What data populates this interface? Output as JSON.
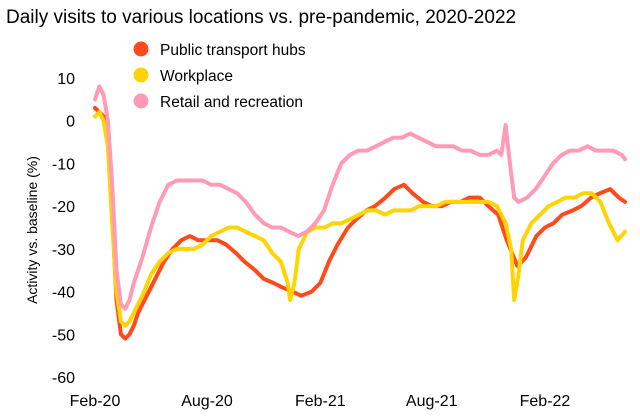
{
  "chart_data": {
    "type": "line",
    "title": "Daily visits to various locations vs. pre-pandemic, 2020-2022",
    "xlabel": "",
    "ylabel": "Activity vs. baseline (%)",
    "ylim": [
      -60,
      10
    ],
    "yticks": [
      10,
      0,
      -10,
      -20,
      -30,
      -40,
      -50,
      -60
    ],
    "xlim": [
      "2020-02-15",
      "2022-06-25"
    ],
    "xticks": [
      {
        "label": "Feb-20",
        "date": "2020-02-15"
      },
      {
        "label": "Aug-20",
        "date": "2020-08-15"
      },
      {
        "label": "Feb-21",
        "date": "2021-02-15"
      },
      {
        "label": "Aug-21",
        "date": "2021-08-15"
      },
      {
        "label": "Feb-22",
        "date": "2022-02-15"
      }
    ],
    "grid": false,
    "legend": "top-left",
    "series": [
      {
        "name": "Public transport hubs",
        "color": "#ff4a1c",
        "points": [
          [
            "2020-02-15",
            3
          ],
          [
            "2020-02-22",
            2
          ],
          [
            "2020-02-29",
            1
          ],
          [
            "2020-03-07",
            -5
          ],
          [
            "2020-03-14",
            -22
          ],
          [
            "2020-03-21",
            -42
          ],
          [
            "2020-03-28",
            -50
          ],
          [
            "2020-04-04",
            -51
          ],
          [
            "2020-04-11",
            -50
          ],
          [
            "2020-04-18",
            -48
          ],
          [
            "2020-04-25",
            -45
          ],
          [
            "2020-05-09",
            -41
          ],
          [
            "2020-05-23",
            -37
          ],
          [
            "2020-06-06",
            -33
          ],
          [
            "2020-06-20",
            -30
          ],
          [
            "2020-07-04",
            -28
          ],
          [
            "2020-07-18",
            -27
          ],
          [
            "2020-08-01",
            -28
          ],
          [
            "2020-08-15",
            -28
          ],
          [
            "2020-09-01",
            -28
          ],
          [
            "2020-09-15",
            -29
          ],
          [
            "2020-10-01",
            -31
          ],
          [
            "2020-10-15",
            -33
          ],
          [
            "2020-11-01",
            -35
          ],
          [
            "2020-11-15",
            -37
          ],
          [
            "2020-12-01",
            -38
          ],
          [
            "2020-12-15",
            -39
          ],
          [
            "2021-01-01",
            -40
          ],
          [
            "2021-01-15",
            -41
          ],
          [
            "2021-02-01",
            -40
          ],
          [
            "2021-02-15",
            -38
          ],
          [
            "2021-03-01",
            -33
          ],
          [
            "2021-03-15",
            -29
          ],
          [
            "2021-04-01",
            -25
          ],
          [
            "2021-04-15",
            -23
          ],
          [
            "2021-05-01",
            -21
          ],
          [
            "2021-05-15",
            -20
          ],
          [
            "2021-06-01",
            -18
          ],
          [
            "2021-06-15",
            -16
          ],
          [
            "2021-07-01",
            -15
          ],
          [
            "2021-07-15",
            -17
          ],
          [
            "2021-08-01",
            -19
          ],
          [
            "2021-08-15",
            -20
          ],
          [
            "2021-09-01",
            -20
          ],
          [
            "2021-09-15",
            -19
          ],
          [
            "2021-10-01",
            -19
          ],
          [
            "2021-10-15",
            -18
          ],
          [
            "2021-11-01",
            -18
          ],
          [
            "2021-11-15",
            -20
          ],
          [
            "2021-12-01",
            -22
          ],
          [
            "2021-12-15",
            -28
          ],
          [
            "2022-01-01",
            -34
          ],
          [
            "2022-01-15",
            -32
          ],
          [
            "2022-02-01",
            -27
          ],
          [
            "2022-02-15",
            -25
          ],
          [
            "2022-03-01",
            -24
          ],
          [
            "2022-03-15",
            -22
          ],
          [
            "2022-04-01",
            -21
          ],
          [
            "2022-04-15",
            -20
          ],
          [
            "2022-05-01",
            -18
          ],
          [
            "2022-05-15",
            -17
          ],
          [
            "2022-06-01",
            -16
          ],
          [
            "2022-06-15",
            -18
          ],
          [
            "2022-06-25",
            -19
          ]
        ]
      },
      {
        "name": "Workplace",
        "color": "#ffd400",
        "points": [
          [
            "2020-02-15",
            1
          ],
          [
            "2020-02-22",
            2
          ],
          [
            "2020-02-29",
            0
          ],
          [
            "2020-03-07",
            -6
          ],
          [
            "2020-03-14",
            -24
          ],
          [
            "2020-03-21",
            -40
          ],
          [
            "2020-03-28",
            -47
          ],
          [
            "2020-04-04",
            -48
          ],
          [
            "2020-04-11",
            -47
          ],
          [
            "2020-04-18",
            -45
          ],
          [
            "2020-05-02",
            -41
          ],
          [
            "2020-05-16",
            -36
          ],
          [
            "2020-05-30",
            -33
          ],
          [
            "2020-06-13",
            -31
          ],
          [
            "2020-06-27",
            -30
          ],
          [
            "2020-07-11",
            -30
          ],
          [
            "2020-07-25",
            -30
          ],
          [
            "2020-08-08",
            -29
          ],
          [
            "2020-08-22",
            -27
          ],
          [
            "2020-09-05",
            -26
          ],
          [
            "2020-09-19",
            -25
          ],
          [
            "2020-10-03",
            -25
          ],
          [
            "2020-10-17",
            -26
          ],
          [
            "2020-11-01",
            -27
          ],
          [
            "2020-11-15",
            -28
          ],
          [
            "2020-11-29",
            -31
          ],
          [
            "2020-12-13",
            -33
          ],
          [
            "2020-12-24",
            -38
          ],
          [
            "2020-12-28",
            -42
          ],
          [
            "2021-01-04",
            -38
          ],
          [
            "2021-01-11",
            -30
          ],
          [
            "2021-01-25",
            -26
          ],
          [
            "2021-02-08",
            -25
          ],
          [
            "2021-02-22",
            -25
          ],
          [
            "2021-03-08",
            -24
          ],
          [
            "2021-03-22",
            -24
          ],
          [
            "2021-04-05",
            -23
          ],
          [
            "2021-04-19",
            -22
          ],
          [
            "2021-05-03",
            -21
          ],
          [
            "2021-05-17",
            -21
          ],
          [
            "2021-05-31",
            -22
          ],
          [
            "2021-06-14",
            -21
          ],
          [
            "2021-06-28",
            -21
          ],
          [
            "2021-07-12",
            -21
          ],
          [
            "2021-07-26",
            -20
          ],
          [
            "2021-08-09",
            -20
          ],
          [
            "2021-08-23",
            -20
          ],
          [
            "2021-09-06",
            -19
          ],
          [
            "2021-09-20",
            -19
          ],
          [
            "2021-10-04",
            -19
          ],
          [
            "2021-10-18",
            -19
          ],
          [
            "2021-11-01",
            -19
          ],
          [
            "2021-11-15",
            -19
          ],
          [
            "2021-11-29",
            -20
          ],
          [
            "2021-12-13",
            -24
          ],
          [
            "2021-12-22",
            -30
          ],
          [
            "2021-12-27",
            -42
          ],
          [
            "2022-01-03",
            -36
          ],
          [
            "2022-01-10",
            -28
          ],
          [
            "2022-01-24",
            -24
          ],
          [
            "2022-02-07",
            -22
          ],
          [
            "2022-02-21",
            -20
          ],
          [
            "2022-03-07",
            -19
          ],
          [
            "2022-03-21",
            -18
          ],
          [
            "2022-04-04",
            -18
          ],
          [
            "2022-04-18",
            -17
          ],
          [
            "2022-05-02",
            -17
          ],
          [
            "2022-05-16",
            -19
          ],
          [
            "2022-05-30",
            -24
          ],
          [
            "2022-06-13",
            -28
          ],
          [
            "2022-06-25",
            -26
          ]
        ]
      },
      {
        "name": "Retail and recreation",
        "color": "#ff9bb6",
        "points": [
          [
            "2020-02-15",
            5
          ],
          [
            "2020-02-22",
            8
          ],
          [
            "2020-02-29",
            6
          ],
          [
            "2020-03-07",
            0
          ],
          [
            "2020-03-14",
            -15
          ],
          [
            "2020-03-21",
            -35
          ],
          [
            "2020-03-28",
            -43
          ],
          [
            "2020-04-04",
            -44
          ],
          [
            "2020-04-11",
            -42
          ],
          [
            "2020-04-18",
            -38
          ],
          [
            "2020-05-02",
            -32
          ],
          [
            "2020-05-16",
            -25
          ],
          [
            "2020-05-30",
            -19
          ],
          [
            "2020-06-13",
            -15
          ],
          [
            "2020-06-27",
            -14
          ],
          [
            "2020-07-11",
            -14
          ],
          [
            "2020-07-25",
            -14
          ],
          [
            "2020-08-08",
            -14
          ],
          [
            "2020-08-22",
            -15
          ],
          [
            "2020-09-05",
            -15
          ],
          [
            "2020-09-19",
            -16
          ],
          [
            "2020-10-03",
            -17
          ],
          [
            "2020-10-17",
            -19
          ],
          [
            "2020-11-01",
            -22
          ],
          [
            "2020-11-15",
            -24
          ],
          [
            "2020-11-29",
            -25
          ],
          [
            "2020-12-13",
            -25
          ],
          [
            "2020-12-27",
            -26
          ],
          [
            "2021-01-10",
            -27
          ],
          [
            "2021-01-24",
            -26
          ],
          [
            "2021-02-07",
            -24
          ],
          [
            "2021-02-21",
            -21
          ],
          [
            "2021-03-07",
            -15
          ],
          [
            "2021-03-21",
            -10
          ],
          [
            "2021-04-04",
            -8
          ],
          [
            "2021-04-18",
            -7
          ],
          [
            "2021-05-02",
            -7
          ],
          [
            "2021-05-16",
            -6
          ],
          [
            "2021-05-30",
            -5
          ],
          [
            "2021-06-13",
            -4
          ],
          [
            "2021-06-27",
            -4
          ],
          [
            "2021-07-11",
            -3
          ],
          [
            "2021-07-25",
            -4
          ],
          [
            "2021-08-08",
            -5
          ],
          [
            "2021-08-22",
            -6
          ],
          [
            "2021-09-05",
            -6
          ],
          [
            "2021-09-19",
            -6
          ],
          [
            "2021-10-03",
            -7
          ],
          [
            "2021-10-17",
            -7
          ],
          [
            "2021-11-01",
            -8
          ],
          [
            "2021-11-15",
            -8
          ],
          [
            "2021-11-29",
            -7
          ],
          [
            "2021-12-06",
            -8
          ],
          [
            "2021-12-13",
            -1
          ],
          [
            "2021-12-20",
            -10
          ],
          [
            "2021-12-27",
            -18
          ],
          [
            "2022-01-03",
            -19
          ],
          [
            "2022-01-17",
            -18
          ],
          [
            "2022-01-31",
            -16
          ],
          [
            "2022-02-14",
            -13
          ],
          [
            "2022-02-28",
            -10
          ],
          [
            "2022-03-14",
            -8
          ],
          [
            "2022-03-28",
            -7
          ],
          [
            "2022-04-11",
            -7
          ],
          [
            "2022-04-25",
            -6
          ],
          [
            "2022-05-09",
            -7
          ],
          [
            "2022-05-23",
            -7
          ],
          [
            "2022-06-06",
            -7
          ],
          [
            "2022-06-20",
            -8
          ],
          [
            "2022-06-25",
            -9
          ]
        ]
      }
    ]
  }
}
